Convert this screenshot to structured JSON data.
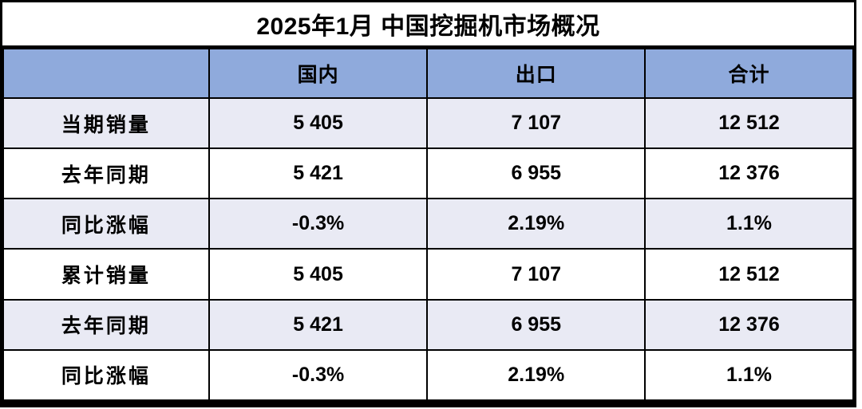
{
  "title": "2025年1月 中国挖掘机市场概况",
  "colors": {
    "header_bg": "#8FAADC",
    "stripe_bg": "#E9EAF4",
    "white_bg": "#FFFFFF",
    "border": "#000000",
    "text": "#000000"
  },
  "chart_data": {
    "type": "table",
    "title": "2025年1月 中国挖掘机市场概况",
    "columns": [
      "",
      "国内",
      "出口",
      "合计"
    ],
    "rows": [
      {
        "label": "当期销量",
        "values": [
          "5 405",
          "7 107",
          "12 512"
        ]
      },
      {
        "label": "去年同期",
        "values": [
          "5 421",
          "6 955",
          "12 376"
        ]
      },
      {
        "label": "同比涨幅",
        "values": [
          "-0.3%",
          "2.19%",
          "1.1%"
        ]
      },
      {
        "label": "累计销量",
        "values": [
          "5 405",
          "7 107",
          "12 512"
        ]
      },
      {
        "label": "去年同期",
        "values": [
          "5 421",
          "6 955",
          "12 376"
        ]
      },
      {
        "label": "同比涨幅",
        "values": [
          "-0.3%",
          "2.19%",
          "1.1%"
        ]
      }
    ]
  }
}
